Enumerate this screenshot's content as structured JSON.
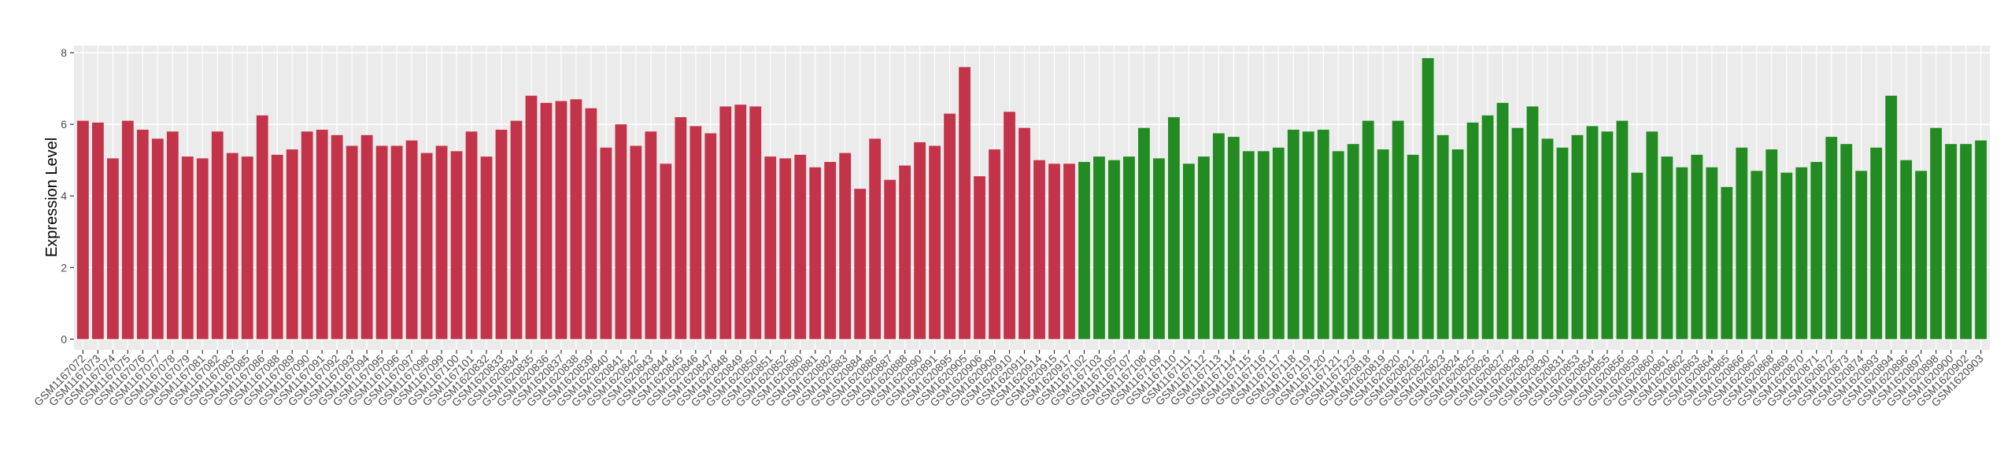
{
  "chart_data": {
    "type": "bar",
    "y_label": "Expression Level",
    "categories": [
      "GSM1167072",
      "GSM1167073",
      "GSM1167074",
      "GSM1167075",
      "GSM1167076",
      "GSM1167077",
      "GSM1167078",
      "GSM1167079",
      "GSM1167081",
      "GSM1167082",
      "GSM1167083",
      "GSM1167085",
      "GSM1167086",
      "GSM1167088",
      "GSM1167089",
      "GSM1167090",
      "GSM1167091",
      "GSM1167092",
      "GSM1167093",
      "GSM1167094",
      "GSM1167095",
      "GSM1167096",
      "GSM1167097",
      "GSM1167098",
      "GSM1167099",
      "GSM1167100",
      "GSM1167101",
      "GSM1620832",
      "GSM1620833",
      "GSM1620834",
      "GSM1620835",
      "GSM1620836",
      "GSM1620837",
      "GSM1620838",
      "GSM1620839",
      "GSM1620840",
      "GSM1620841",
      "GSM1620842",
      "GSM1620843",
      "GSM1620844",
      "GSM1620845",
      "GSM1620846",
      "GSM1620847",
      "GSM1620848",
      "GSM1620849",
      "GSM1620850",
      "GSM1620851",
      "GSM1620852",
      "GSM1620880",
      "GSM1620881",
      "GSM1620882",
      "GSM1620883",
      "GSM1620884",
      "GSM1620886",
      "GSM1620887",
      "GSM1620888",
      "GSM1620890",
      "GSM1620891",
      "GSM1620895",
      "GSM1620905",
      "GSM1620906",
      "GSM1620909",
      "GSM1620910",
      "GSM1620911",
      "GSM1620914",
      "GSM1620915",
      "GSM1620917",
      "GSM1167102",
      "GSM1167103",
      "GSM1167105",
      "GSM1167107",
      "GSM1167108",
      "GSM1167109",
      "GSM1167110",
      "GSM1167111",
      "GSM1167112",
      "GSM1167113",
      "GSM1167114",
      "GSM1167115",
      "GSM1167116",
      "GSM1167117",
      "GSM1167118",
      "GSM1167119",
      "GSM1167120",
      "GSM1167121",
      "GSM1167123",
      "GSM1620818",
      "GSM1620819",
      "GSM1620820",
      "GSM1620821",
      "GSM1620822",
      "GSM1620823",
      "GSM1620824",
      "GSM1620825",
      "GSM1620826",
      "GSM1620827",
      "GSM1620828",
      "GSM1620829",
      "GSM1620830",
      "GSM1620831",
      "GSM1620853",
      "GSM1620854",
      "GSM1620855",
      "GSM1620856",
      "GSM1620859",
      "GSM1620860",
      "GSM1620861",
      "GSM1620862",
      "GSM1620863",
      "GSM1620864",
      "GSM1620865",
      "GSM1620866",
      "GSM1620867",
      "GSM1620868",
      "GSM1620869",
      "GSM1620870",
      "GSM1620871",
      "GSM1620872",
      "GSM1620873",
      "GSM1620874",
      "GSM1620893",
      "GSM1620894",
      "GSM1620896",
      "GSM1620897",
      "GSM1620898",
      "GSM1620900",
      "GSM1620902",
      "GSM1620903"
    ],
    "series": [
      {
        "color": "#c3344a",
        "values": [
          6.1,
          6.05,
          5.05,
          6.1,
          5.85,
          5.6,
          5.8,
          5.1,
          5.05,
          5.8,
          5.2,
          5.1,
          6.25,
          5.15,
          5.3,
          5.8,
          5.85,
          5.7,
          5.4,
          5.7,
          5.4,
          5.4,
          5.55,
          5.2,
          5.4,
          5.25,
          5.8,
          5.1,
          5.85,
          6.1,
          6.8,
          6.6,
          6.65,
          6.7,
          6.45,
          5.35,
          6.0,
          5.4,
          5.8,
          4.9,
          6.2,
          5.95,
          5.75,
          6.5,
          6.55,
          6.5,
          5.1,
          5.05,
          5.15,
          4.8,
          4.95,
          5.2,
          4.2,
          5.6,
          4.45,
          4.85,
          5.5,
          5.4,
          6.3,
          7.6,
          4.55,
          5.3,
          6.35,
          5.9,
          5.0,
          4.9,
          4.9,
          null,
          null,
          null,
          null,
          null,
          null,
          null,
          null,
          null,
          null,
          null,
          null,
          null,
          null,
          null,
          null,
          null,
          null,
          null,
          null,
          null,
          null,
          null,
          null,
          null,
          null,
          null,
          null,
          null,
          null,
          null,
          null,
          null,
          null,
          null,
          null,
          null,
          null,
          null,
          null,
          null,
          null,
          null,
          null,
          null,
          null,
          null,
          null,
          null,
          null,
          null,
          null,
          null,
          null,
          null,
          null,
          null,
          null,
          null,
          null,
          null
        ]
      },
      {
        "color": "#228b22",
        "values": [
          null,
          null,
          null,
          null,
          null,
          null,
          null,
          null,
          null,
          null,
          null,
          null,
          null,
          null,
          null,
          null,
          null,
          null,
          null,
          null,
          null,
          null,
          null,
          null,
          null,
          null,
          null,
          null,
          null,
          null,
          null,
          null,
          null,
          null,
          null,
          null,
          null,
          null,
          null,
          null,
          null,
          null,
          null,
          null,
          null,
          null,
          null,
          null,
          null,
          null,
          null,
          null,
          null,
          null,
          null,
          null,
          null,
          null,
          null,
          null,
          null,
          null,
          null,
          null,
          null,
          null,
          null,
          4.95,
          5.1,
          5.0,
          5.1,
          5.9,
          5.05,
          6.2,
          4.9,
          5.1,
          5.75,
          5.65,
          5.25,
          5.25,
          5.35,
          5.85,
          5.8,
          5.85,
          5.25,
          5.45,
          6.1,
          5.3,
          6.1,
          5.15,
          7.85,
          5.7,
          5.3,
          6.05,
          6.25,
          6.6,
          5.9,
          6.5,
          5.6,
          5.35,
          5.7,
          5.95,
          5.8,
          6.1,
          4.65,
          5.8,
          5.1,
          4.8,
          5.15,
          4.8,
          4.25,
          5.35,
          4.7,
          5.3,
          4.65,
          4.8,
          4.95,
          5.65,
          5.45,
          4.7,
          5.35,
          6.8,
          5.0,
          4.7,
          5.9,
          5.45,
          5.45,
          5.55
        ]
      }
    ],
    "ylim": [
      -0.3,
      8.2
    ],
    "yticks": [
      0,
      2,
      4,
      6,
      8
    ],
    "grid": true
  }
}
